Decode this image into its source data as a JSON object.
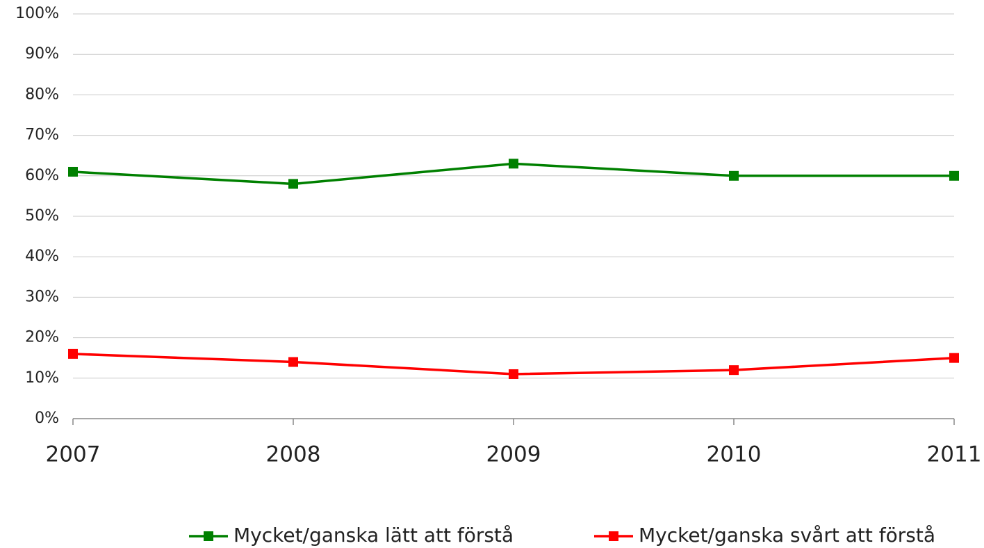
{
  "chart_data": {
    "type": "line",
    "categories": [
      "2007",
      "2008",
      "2009",
      "2010",
      "2011"
    ],
    "series": [
      {
        "name": "Mycket/ganska lätt att förstå",
        "color": "#008000",
        "values": [
          61,
          58,
          63,
          60,
          60
        ]
      },
      {
        "name": "Mycket/ganska svårt att förstå",
        "color": "#ff0000",
        "values": [
          16,
          14,
          11,
          12,
          15
        ]
      }
    ],
    "ylim": [
      0,
      100
    ],
    "yticks": [
      {
        "value": 0,
        "label": "0%"
      },
      {
        "value": 10,
        "label": "10%"
      },
      {
        "value": 20,
        "label": "20%"
      },
      {
        "value": 30,
        "label": "30%"
      },
      {
        "value": 40,
        "label": "40%"
      },
      {
        "value": 50,
        "label": "50%"
      },
      {
        "value": 60,
        "label": "60%"
      },
      {
        "value": 70,
        "label": "70%"
      },
      {
        "value": 80,
        "label": "80%"
      },
      {
        "value": 90,
        "label": "90%"
      },
      {
        "value": 100,
        "label": "100%"
      }
    ],
    "grid": true,
    "legend": "bottom"
  }
}
